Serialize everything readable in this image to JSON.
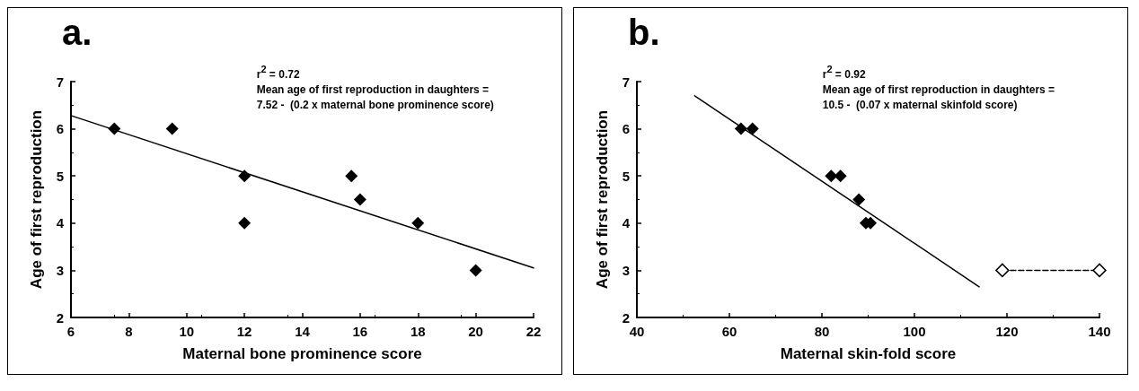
{
  "chart_data": [
    {
      "type": "scatter",
      "title": "a.",
      "xlabel": "Maternal bone prominence score",
      "ylabel": "Age of first reproduction",
      "annotations": [
        "r$^{2}$ = 0.72",
        "Mean age of first reproduction in daughters =",
        "7.52 -  (0.2 x maternal bone prominence score)"
      ],
      "xlim": [
        6,
        22
      ],
      "xticks": [
        6,
        8,
        10,
        12,
        14,
        16,
        18,
        20,
        22
      ],
      "ylim": [
        2,
        7
      ],
      "yticks": [
        2,
        3,
        4,
        5,
        6,
        7
      ],
      "grid": false,
      "series": [
        {
          "color": "#000000",
          "marker": "diamond",
          "x": [
            7.5,
            9.5,
            12,
            12,
            15.7,
            16,
            18,
            20
          ],
          "values": [
            6,
            6,
            5,
            4,
            5,
            4.5,
            4,
            3
          ]
        },
        {
          "type": "line",
          "color": "#000000",
          "marker": "none",
          "line_style": "solid",
          "x": [
            6,
            22
          ],
          "values": [
            6.28,
            3.05
          ]
        }
      ]
    },
    {
      "type": "scatter",
      "title": "b.",
      "xlabel": "Maternal skin-fold score",
      "ylabel": "Age of first reproduction",
      "annotations": [
        "r$^{2}$ = 0.92",
        "Mean age of first reproduction in daughters =",
        "10.5 -  (0.07 x maternal skinfold score)"
      ],
      "xlim": [
        40,
        140
      ],
      "xticks": [
        40,
        60,
        80,
        100,
        120,
        140
      ],
      "ylim": [
        2,
        7
      ],
      "yticks": [
        2,
        3,
        4,
        5,
        6,
        7
      ],
      "grid": false,
      "series": [
        {
          "color": "#000000",
          "marker": "diamond",
          "x": [
            62.5,
            65,
            82,
            84,
            88,
            89.5,
            90.5
          ],
          "values": [
            6,
            6,
            5,
            5,
            4.5,
            4,
            4
          ]
        },
        {
          "type": "line",
          "color": "#000000",
          "marker": "none",
          "line_style": "solid",
          "x": [
            52.5,
            114
          ],
          "values": [
            6.7,
            2.65
          ]
        },
        {
          "type": "line",
          "color": "#000000",
          "marker": "diamond",
          "line_style": "dashed",
          "x": [
            119,
            140
          ],
          "values": [
            3,
            3
          ]
        }
      ]
    }
  ]
}
